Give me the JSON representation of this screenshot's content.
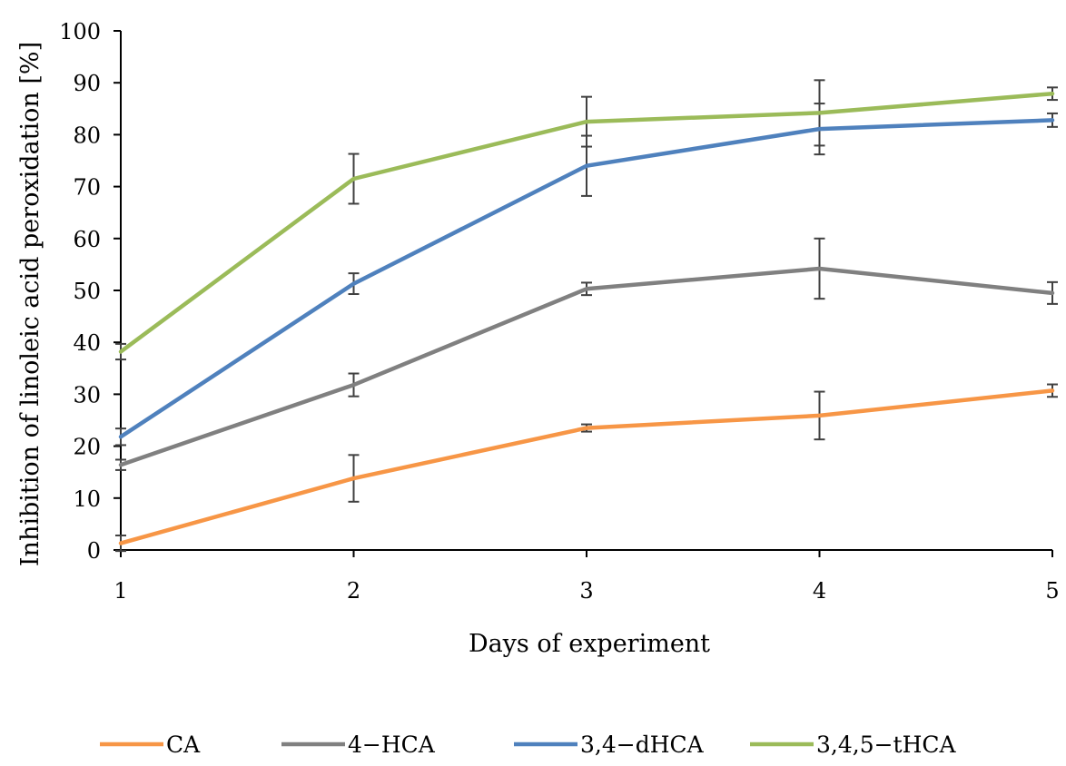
{
  "chart_data": {
    "type": "line",
    "title": "",
    "xlabel": "Days of experiment",
    "ylabel": "Inhibition of linoleic acid peroxidation [%]",
    "x": [
      1,
      2,
      3,
      4,
      5
    ],
    "xlim": [
      1,
      5
    ],
    "ylim": [
      0,
      100
    ],
    "yticks": [
      0,
      10,
      20,
      30,
      40,
      50,
      60,
      70,
      80,
      90,
      100
    ],
    "xticks": [
      1,
      2,
      3,
      4,
      5
    ],
    "grid": false,
    "legend_position": "bottom",
    "error_bar_color": "#404040",
    "series": [
      {
        "name": "CA",
        "color": "#F79646",
        "values": [
          1.3,
          13.8,
          23.5,
          25.9,
          30.7
        ],
        "errors": [
          1.5,
          4.5,
          0.7,
          4.6,
          1.2
        ]
      },
      {
        "name": "4−HCA",
        "color": "#808080",
        "values": [
          16.4,
          31.8,
          50.3,
          54.2,
          49.5
        ],
        "errors": [
          1.0,
          2.2,
          1.2,
          5.8,
          2.1
        ]
      },
      {
        "name": "3,4−dHCA",
        "color": "#4F81BD",
        "values": [
          21.8,
          51.3,
          74.0,
          81.1,
          82.8
        ],
        "errors": [
          1.6,
          2.0,
          5.8,
          4.9,
          1.3
        ]
      },
      {
        "name": "3,4,5−tHCA",
        "color": "#9BBB59",
        "values": [
          38.2,
          71.5,
          82.5,
          84.2,
          87.9
        ],
        "errors": [
          1.5,
          4.8,
          4.8,
          6.3,
          1.2
        ]
      }
    ]
  }
}
